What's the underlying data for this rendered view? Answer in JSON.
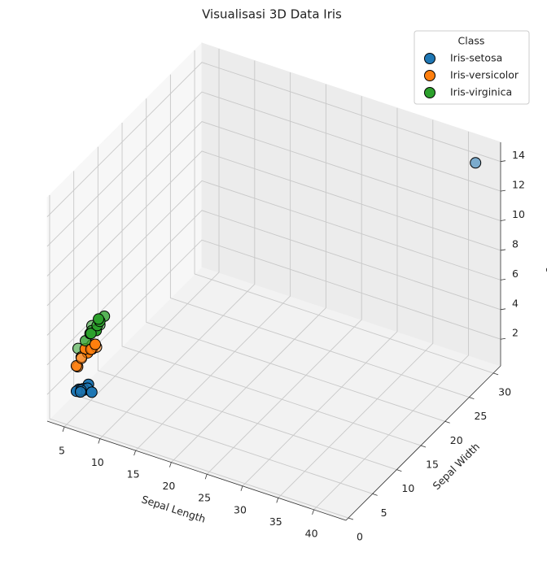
{
  "chart_data": {
    "type": "scatter3d",
    "title": "Visualisasi 3D Data Iris",
    "xlabel": "Sepal Length",
    "ylabel": "Sepal Width",
    "zlabel": "Petal Length",
    "xlim": [
      2.6,
      44.5
    ],
    "ylim": [
      -0.5,
      31.5
    ],
    "zlim": [
      0.2,
      15.3
    ],
    "xticks": [
      5,
      10,
      15,
      20,
      25,
      30,
      35,
      40
    ],
    "yticks": [
      0,
      5,
      10,
      15,
      20,
      25,
      30
    ],
    "zticks": [
      2,
      4,
      6,
      8,
      10,
      12,
      14
    ],
    "grid": true,
    "legend_title": "Class",
    "legend": "upper right",
    "series": [
      {
        "name": "Iris-setosa",
        "color": "#1f77b4",
        "x": [
          5.1,
          4.9,
          4.7,
          4.6,
          5.0,
          5.4,
          4.6,
          5.0,
          4.4,
          4.9,
          5.4,
          5.8,
          42
        ],
        "y": [
          3.5,
          3.0,
          3.2,
          3.1,
          3.6,
          3.9,
          3.4,
          3.4,
          2.9,
          3.1,
          3.7,
          4.0,
          30
        ],
        "z": [
          1.4,
          1.4,
          1.3,
          1.5,
          1.4,
          1.7,
          1.4,
          1.5,
          1.4,
          1.5,
          1.5,
          1.2,
          14
        ]
      },
      {
        "name": "Iris-versicolor",
        "color": "#ff7f0e",
        "x": [
          7.0,
          6.4,
          6.9,
          5.5,
          6.5,
          5.7,
          6.3,
          4.9,
          6.6,
          5.2,
          5.0,
          5.9
        ],
        "y": [
          3.2,
          3.2,
          3.1,
          2.3,
          2.8,
          2.8,
          3.3,
          2.4,
          2.9,
          2.7,
          2.0,
          3.0
        ],
        "z": [
          4.7,
          4.5,
          4.9,
          4.0,
          4.6,
          4.5,
          4.7,
          3.3,
          4.6,
          3.9,
          3.5,
          4.2
        ]
      },
      {
        "name": "Iris-virginica",
        "color": "#2ca02c",
        "x": [
          6.3,
          5.8,
          7.1,
          6.3,
          6.5,
          7.6,
          4.9,
          7.3,
          6.7,
          7.2,
          7.7,
          7.7
        ],
        "y": [
          3.3,
          2.7,
          3.0,
          2.9,
          3.0,
          3.0,
          2.5,
          2.9,
          2.5,
          3.6,
          3.8,
          2.6
        ],
        "z": [
          6.0,
          5.1,
          5.9,
          5.6,
          5.8,
          6.6,
          4.5,
          6.3,
          5.8,
          6.1,
          6.7,
          6.9
        ]
      }
    ]
  }
}
